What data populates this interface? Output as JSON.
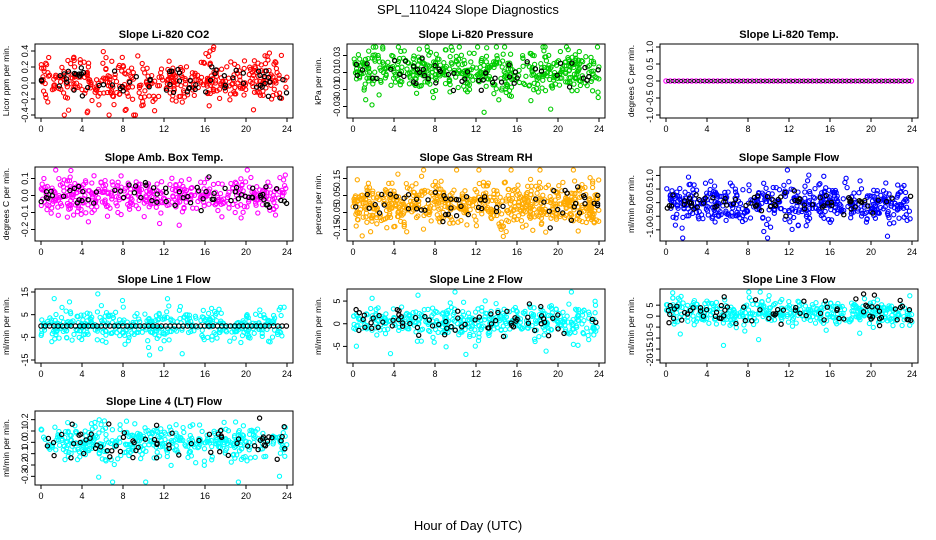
{
  "figure": {
    "title": "SPL_110424  Slope Diagnostics",
    "xlabel": "Hour of Day (UTC)"
  },
  "chart_data": [
    {
      "type": "scatter",
      "title": "Slope Li-820 CO2",
      "ylabel": "Licor ppm per min.",
      "xlim": [
        0,
        24
      ],
      "xticks": [
        0,
        4,
        8,
        12,
        16,
        20,
        24
      ],
      "ylim": [
        -0.4,
        0.45
      ],
      "yticks": [
        -0.4,
        -0.2,
        0.0,
        0.2,
        0.4
      ],
      "ytick_labels": [
        "-0.4",
        "-0.2",
        "0.0",
        "0.2",
        "0.4"
      ],
      "color": "#ff0000",
      "n_points": 420,
      "n_black": 70,
      "center": 0.02,
      "spread": 0.16,
      "black_spread": 0.1,
      "line_y": null
    },
    {
      "type": "scatter",
      "title": "Slope Li-820 Pressure",
      "ylabel": "kPa per min.",
      "xlim": [
        0,
        24
      ],
      "xticks": [
        0,
        4,
        8,
        12,
        16,
        20,
        24
      ],
      "ylim": [
        -0.04,
        0.04
      ],
      "yticks": [
        -0.03,
        -0.01,
        0.01,
        0.03
      ],
      "ytick_labels": [
        "-0.03",
        "-0.01",
        "0.01",
        "0.03"
      ],
      "color": "#00cc00",
      "n_points": 520,
      "n_black": 55,
      "center": 0.012,
      "spread": 0.014,
      "black_spread": 0.01,
      "line_y": null
    },
    {
      "type": "scatter",
      "title": "Slope Li-820 Temp.",
      "ylabel": "degrees C per min.",
      "xlim": [
        0,
        24
      ],
      "xticks": [
        0,
        4,
        8,
        12,
        16,
        20,
        24
      ],
      "ylim": [
        -1.0,
        1.0
      ],
      "yticks": [
        -1.0,
        -0.5,
        0.0,
        0.5,
        1.0
      ],
      "ytick_labels": [
        "-1.0",
        "-0.5",
        "0.0",
        "0.5",
        "1.0"
      ],
      "color": "#ff00ff",
      "n_points": 0,
      "n_black": 0,
      "center": 0,
      "spread": 0,
      "black_spread": 0,
      "line_y": 0.0
    },
    {
      "type": "scatter",
      "title": "Slope Amb. Box Temp.",
      "ylabel": "degrees C per min.",
      "xlim": [
        0,
        24
      ],
      "xticks": [
        0,
        4,
        8,
        12,
        16,
        20,
        24
      ],
      "ylim": [
        -0.25,
        0.15
      ],
      "yticks": [
        -0.2,
        -0.1,
        0.0,
        0.1
      ],
      "ytick_labels": [
        "-0.2",
        "-0.1",
        "0.0",
        "0.1"
      ],
      "color": "#ff00ff",
      "n_points": 420,
      "n_black": 70,
      "center": 0.0,
      "spread": 0.05,
      "black_spread": 0.035,
      "line_y": null
    },
    {
      "type": "scatter",
      "title": "Slope Gas Stream RH",
      "ylabel": "percent per min.",
      "xlim": [
        0,
        24
      ],
      "xticks": [
        0,
        4,
        8,
        12,
        16,
        20,
        24
      ],
      "ylim": [
        -0.2,
        0.2
      ],
      "yticks": [
        -0.15,
        -0.05,
        0.05,
        0.15
      ],
      "ytick_labels": [
        "-0.15",
        "-0.05",
        "0.05",
        "0.15"
      ],
      "color": "#ffaa00",
      "n_points": 650,
      "n_black": 60,
      "center": 0.0,
      "spread": 0.065,
      "black_spread": 0.05,
      "line_y": null
    },
    {
      "type": "scatter",
      "title": "Slope Sample Flow",
      "ylabel": "ml/min per min.",
      "xlim": [
        0,
        24
      ],
      "xticks": [
        0,
        4,
        8,
        12,
        16,
        20,
        24
      ],
      "ylim": [
        -1.3,
        1.2
      ],
      "yticks": [
        -1.0,
        -0.5,
        0.0,
        0.5,
        1.0
      ],
      "ytick_labels": [
        "-1.0",
        "-0.5",
        "0.0",
        "0.5",
        "1.0"
      ],
      "color": "#0000ff",
      "n_points": 500,
      "n_black": 75,
      "center": 0.0,
      "spread": 0.35,
      "black_spread": 0.2,
      "line_y": null
    },
    {
      "type": "scatter",
      "title": "Slope Line 1 Flow",
      "ylabel": "ml/min per min.",
      "xlim": [
        0,
        24
      ],
      "xticks": [
        0,
        4,
        8,
        12,
        16,
        20,
        24
      ],
      "ylim": [
        -15,
        15
      ],
      "yticks": [
        -15,
        -5,
        5,
        15
      ],
      "ytick_labels": [
        "-15",
        "-5",
        "5",
        "15"
      ],
      "color": "#00ffff",
      "n_points": 420,
      "n_black": 0,
      "center": 0.0,
      "spread": 3.5,
      "black_spread": 0,
      "line_y": 0.0
    },
    {
      "type": "scatter",
      "title": "Slope Line 2 Flow",
      "ylabel": "ml/min per min.",
      "xlim": [
        0,
        24
      ],
      "xticks": [
        0,
        4,
        8,
        12,
        16,
        20,
        24
      ],
      "ylim": [
        -8,
        7
      ],
      "yticks": [
        -5,
        0,
        5
      ],
      "ytick_labels": [
        "-5",
        "0",
        "5"
      ],
      "color": "#00ffff",
      "n_points": 420,
      "n_black": 70,
      "center": 0.5,
      "spread": 1.8,
      "black_spread": 1.5,
      "line_y": null
    },
    {
      "type": "scatter",
      "title": "Slope Line 3 Flow",
      "ylabel": "ml/min per min.",
      "xlim": [
        0,
        24
      ],
      "xticks": [
        0,
        4,
        8,
        12,
        16,
        20,
        24
      ],
      "ylim": [
        -20,
        11
      ],
      "yticks": [
        -20,
        -15,
        -10,
        -5,
        0,
        5
      ],
      "ytick_labels": [
        "-20",
        "-15",
        "-10",
        "-5",
        "0",
        "5"
      ],
      "color": "#00ffff",
      "n_points": 420,
      "n_black": 75,
      "center": 1.5,
      "spread": 3.0,
      "black_spread": 2.8,
      "line_y": null
    },
    {
      "type": "scatter",
      "title": "Slope Line 4 (LT) Flow",
      "ylabel": "ml/min per min.",
      "xlim": [
        0,
        24
      ],
      "xticks": [
        0,
        4,
        8,
        12,
        16,
        20,
        24
      ],
      "ylim": [
        -0.35,
        0.25
      ],
      "yticks": [
        -0.3,
        -0.2,
        -0.1,
        0.0,
        0.1,
        0.2
      ],
      "ytick_labels": [
        "-0.3",
        "-0.2",
        "-0.1",
        "0.0",
        "0.1",
        "0.2"
      ],
      "color": "#00ffff",
      "n_points": 420,
      "n_black": 70,
      "center": 0.0,
      "spread": 0.07,
      "black_spread": 0.07,
      "line_y": null
    }
  ]
}
